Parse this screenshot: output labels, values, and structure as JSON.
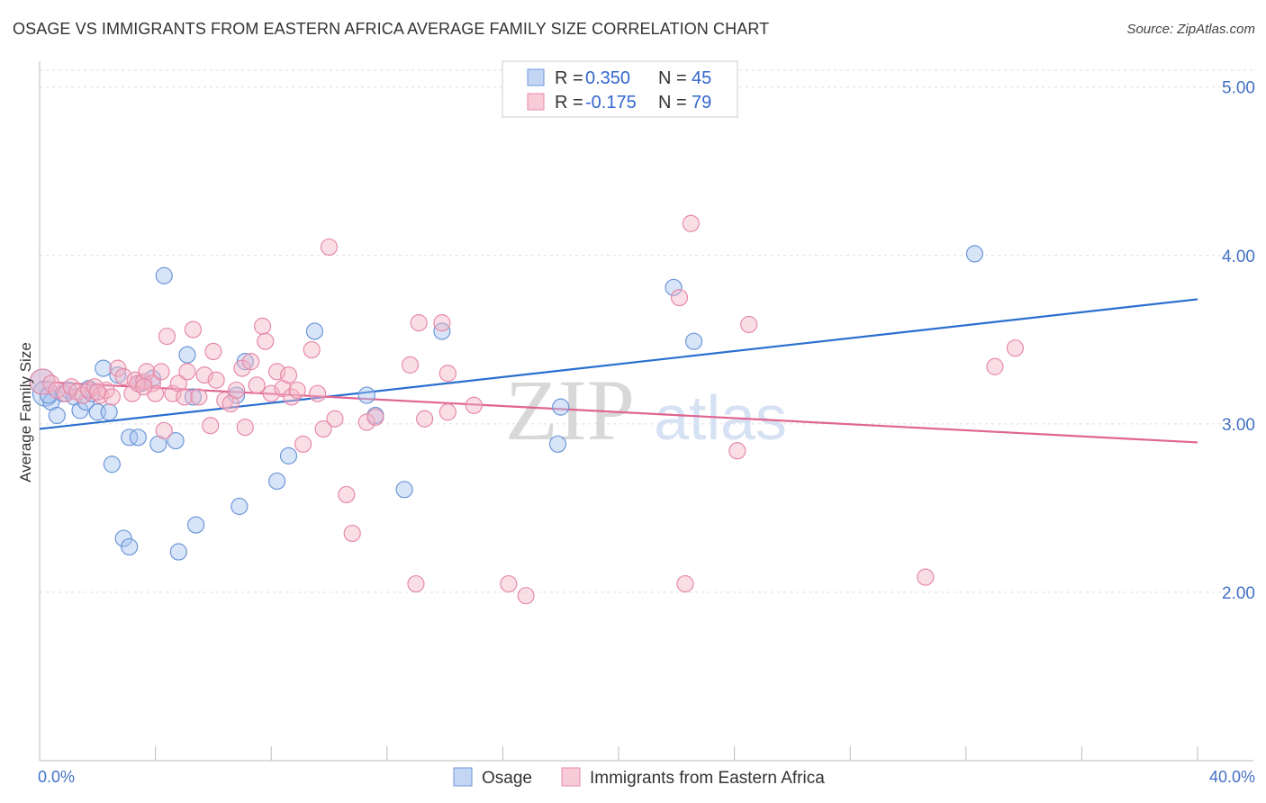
{
  "header": {
    "title": "OSAGE VS IMMIGRANTS FROM EASTERN AFRICA AVERAGE FAMILY SIZE CORRELATION CHART",
    "source": "Source: ZipAtlas.com"
  },
  "watermark": {
    "zip": "ZIP",
    "atlas": "atlas"
  },
  "legend_top": [
    {
      "r_label": "R = ",
      "r_value": "0.350",
      "n_label": "N = ",
      "n_value": "45",
      "color": "#a9c4ef"
    },
    {
      "r_label": "R = ",
      "r_value": "-0.175",
      "n_label": "N = ",
      "n_value": "79",
      "color": "#f5b5c8"
    }
  ],
  "chart_data": {
    "type": "scatter",
    "title": "OSAGE VS IMMIGRANTS FROM EASTERN AFRICA AVERAGE FAMILY SIZE CORRELATION CHART",
    "xlabel": "",
    "ylabel": "Average Family Size",
    "xlim": [
      0,
      40
    ],
    "ylim": [
      1.0,
      5.1
    ],
    "x_tick_labels": [
      "0.0%",
      "40.0%"
    ],
    "y_ticks": [
      2.0,
      3.0,
      4.0,
      5.0
    ],
    "y_tick_labels": [
      "2.00",
      "3.00",
      "4.00",
      "5.00"
    ],
    "grid": true,
    "legend_position": "top-center",
    "series": [
      {
        "name": "Osage",
        "color": "#a9c4ef",
        "stroke": "#6d97d8",
        "trend": {
          "x": [
            0,
            40
          ],
          "y": [
            2.97,
            3.74
          ],
          "color": "#2a6fcf"
        },
        "points": [
          [
            0.1,
            3.25
          ],
          [
            0.2,
            3.18
          ],
          [
            0.4,
            3.13
          ],
          [
            0.6,
            3.05
          ],
          [
            0.8,
            3.18
          ],
          [
            1.0,
            3.2
          ],
          [
            1.2,
            3.16
          ],
          [
            1.4,
            3.08
          ],
          [
            1.6,
            3.13
          ],
          [
            1.8,
            3.18
          ],
          [
            2.0,
            3.07
          ],
          [
            2.2,
            3.33
          ],
          [
            2.4,
            3.07
          ],
          [
            2.5,
            2.76
          ],
          [
            2.7,
            3.29
          ],
          [
            2.9,
            2.32
          ],
          [
            3.1,
            2.27
          ],
          [
            3.1,
            2.92
          ],
          [
            3.4,
            2.92
          ],
          [
            3.5,
            3.24
          ],
          [
            3.9,
            3.27
          ],
          [
            4.1,
            2.88
          ],
          [
            4.3,
            3.88
          ],
          [
            4.7,
            2.9
          ],
          [
            4.8,
            2.24
          ],
          [
            5.1,
            3.41
          ],
          [
            5.3,
            3.16
          ],
          [
            5.4,
            2.4
          ],
          [
            6.8,
            3.17
          ],
          [
            6.9,
            2.51
          ],
          [
            7.1,
            3.37
          ],
          [
            8.2,
            2.66
          ],
          [
            8.6,
            2.81
          ],
          [
            9.5,
            3.55
          ],
          [
            11.3,
            3.17
          ],
          [
            11.6,
            3.05
          ],
          [
            12.6,
            2.61
          ],
          [
            13.9,
            3.55
          ],
          [
            17.9,
            2.88
          ],
          [
            18.0,
            3.1
          ],
          [
            21.9,
            3.81
          ],
          [
            22.6,
            3.49
          ],
          [
            32.3,
            4.01
          ],
          [
            0.3,
            3.17
          ],
          [
            1.7,
            3.21
          ]
        ]
      },
      {
        "name": "Immigrants from Eastern Africa",
        "color": "#f5b5c8",
        "stroke": "#e68aa8",
        "trend": {
          "x": [
            0,
            40
          ],
          "y": [
            3.25,
            2.89
          ],
          "color": "#e06590"
        },
        "points": [
          [
            0.1,
            3.25
          ],
          [
            0.4,
            3.24
          ],
          [
            0.6,
            3.2
          ],
          [
            0.9,
            3.18
          ],
          [
            1.1,
            3.22
          ],
          [
            1.3,
            3.19
          ],
          [
            1.5,
            3.17
          ],
          [
            1.7,
            3.2
          ],
          [
            1.9,
            3.22
          ],
          [
            2.1,
            3.17
          ],
          [
            2.3,
            3.2
          ],
          [
            2.5,
            3.16
          ],
          [
            2.7,
            3.33
          ],
          [
            2.9,
            3.28
          ],
          [
            3.2,
            3.18
          ],
          [
            3.3,
            3.26
          ],
          [
            3.4,
            3.24
          ],
          [
            3.6,
            3.25
          ],
          [
            3.7,
            3.31
          ],
          [
            3.9,
            3.24
          ],
          [
            4.0,
            3.18
          ],
          [
            4.2,
            3.31
          ],
          [
            4.3,
            2.96
          ],
          [
            4.4,
            3.52
          ],
          [
            4.6,
            3.18
          ],
          [
            4.8,
            3.24
          ],
          [
            5.0,
            3.16
          ],
          [
            5.1,
            3.31
          ],
          [
            5.3,
            3.56
          ],
          [
            5.5,
            3.16
          ],
          [
            5.7,
            3.29
          ],
          [
            5.9,
            2.99
          ],
          [
            6.0,
            3.43
          ],
          [
            6.4,
            3.14
          ],
          [
            6.6,
            3.12
          ],
          [
            6.8,
            3.2
          ],
          [
            7.0,
            3.33
          ],
          [
            7.1,
            2.98
          ],
          [
            7.3,
            3.37
          ],
          [
            7.5,
            3.23
          ],
          [
            7.7,
            3.58
          ],
          [
            7.8,
            3.49
          ],
          [
            8.0,
            3.18
          ],
          [
            8.2,
            3.31
          ],
          [
            8.4,
            3.21
          ],
          [
            8.6,
            3.29
          ],
          [
            8.7,
            3.16
          ],
          [
            9.1,
            2.88
          ],
          [
            9.4,
            3.44
          ],
          [
            9.6,
            3.18
          ],
          [
            9.8,
            2.97
          ],
          [
            10.0,
            4.05
          ],
          [
            10.2,
            3.03
          ],
          [
            10.6,
            2.58
          ],
          [
            10.8,
            2.35
          ],
          [
            11.3,
            3.01
          ],
          [
            11.6,
            3.04
          ],
          [
            12.8,
            3.35
          ],
          [
            13.0,
            2.05
          ],
          [
            13.1,
            3.6
          ],
          [
            13.3,
            3.03
          ],
          [
            13.9,
            3.6
          ],
          [
            14.1,
            3.07
          ],
          [
            14.1,
            3.3
          ],
          [
            15.0,
            3.11
          ],
          [
            16.2,
            2.05
          ],
          [
            16.8,
            1.98
          ],
          [
            22.1,
            3.75
          ],
          [
            22.3,
            2.05
          ],
          [
            22.5,
            4.19
          ],
          [
            24.1,
            2.84
          ],
          [
            24.5,
            3.59
          ],
          [
            30.6,
            2.09
          ],
          [
            33.0,
            3.34
          ],
          [
            33.7,
            3.45
          ],
          [
            3.6,
            3.22
          ],
          [
            6.1,
            3.26
          ],
          [
            8.9,
            3.2
          ],
          [
            2.0,
            3.19
          ]
        ]
      }
    ]
  },
  "legend_bottom": [
    {
      "label": "Osage",
      "color": "#a9c4ef"
    },
    {
      "label": "Immigrants from Eastern Africa",
      "color": "#f5b5c8"
    }
  ]
}
